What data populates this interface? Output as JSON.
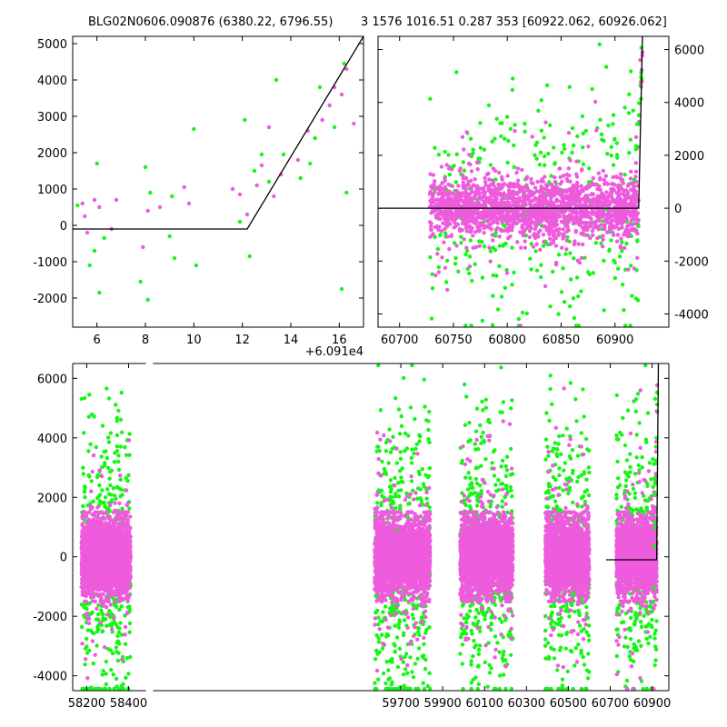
{
  "titles": {
    "left": "BLG02N0606.090876 (6380.22, 6796.55)",
    "right": "3 1576 1016.51 0.287 353 [60922.062, 60926.062]"
  },
  "colors": {
    "series_a": "#ee5bdd",
    "series_b": "#16f516",
    "fit_line": "#000000",
    "axes": "#000000",
    "background": "#ffffff"
  },
  "chart_data": [
    {
      "id": "zoom-left",
      "type": "scatter",
      "x_offset_label": "+6.091e4",
      "xlim": [
        5,
        17
      ],
      "ylim": [
        -2800,
        5200
      ],
      "xticks": [
        6,
        8,
        10,
        12,
        14,
        16
      ],
      "yticks": [
        -2000,
        -1000,
        0,
        1000,
        2000,
        3000,
        4000,
        5000
      ],
      "y_tick_side": "left",
      "series": [
        {
          "color": "#ee5bdd",
          "points": [
            [
              5.4,
              600
            ],
            [
              5.5,
              250
            ],
            [
              5.6,
              -200
            ],
            [
              5.9,
              700
            ],
            [
              6.1,
              500
            ],
            [
              6.6,
              -100
            ],
            [
              6.8,
              700
            ],
            [
              7.9,
              -600
            ],
            [
              8.1,
              400
            ],
            [
              8.6,
              500
            ],
            [
              9.6,
              1050
            ],
            [
              9.8,
              600
            ],
            [
              11.6,
              1000
            ],
            [
              11.9,
              850
            ],
            [
              12.2,
              300
            ],
            [
              12.6,
              1100
            ],
            [
              12.8,
              1650
            ],
            [
              13.1,
              2700
            ],
            [
              13.3,
              800
            ],
            [
              13.6,
              1400
            ],
            [
              14.3,
              1800
            ],
            [
              14.7,
              2600
            ],
            [
              15.3,
              2900
            ],
            [
              15.6,
              3300
            ],
            [
              15.8,
              3800
            ],
            [
              16.1,
              3600
            ],
            [
              16.3,
              4300
            ],
            [
              16.6,
              2800
            ]
          ]
        },
        {
          "color": "#16f516",
          "points": [
            [
              5.2,
              550
            ],
            [
              5.7,
              -1100
            ],
            [
              5.9,
              -700
            ],
            [
              6.0,
              1700
            ],
            [
              6.1,
              -1850
            ],
            [
              6.3,
              -350
            ],
            [
              7.8,
              -1550
            ],
            [
              8.0,
              1600
            ],
            [
              8.1,
              -2050
            ],
            [
              8.2,
              900
            ],
            [
              9.0,
              -300
            ],
            [
              9.1,
              800
            ],
            [
              9.2,
              -900
            ],
            [
              10.0,
              2650
            ],
            [
              10.1,
              -1100
            ],
            [
              11.9,
              100
            ],
            [
              12.1,
              2900
            ],
            [
              12.3,
              -850
            ],
            [
              12.5,
              1500
            ],
            [
              12.8,
              1950
            ],
            [
              13.1,
              1200
            ],
            [
              13.4,
              4000
            ],
            [
              13.7,
              1950
            ],
            [
              14.4,
              1300
            ],
            [
              14.8,
              1700
            ],
            [
              15.0,
              2400
            ],
            [
              15.2,
              3800
            ],
            [
              15.8,
              2700
            ],
            [
              16.1,
              -1750
            ],
            [
              16.2,
              4450
            ],
            [
              16.3,
              900
            ]
          ]
        }
      ],
      "fit_line": [
        [
          5,
          -100
        ],
        [
          12.2,
          -100
        ],
        [
          17,
          5200
        ]
      ]
    },
    {
      "id": "zoom-right",
      "type": "scatter",
      "xlim": [
        60680,
        60950
      ],
      "ylim": [
        -4500,
        6500
      ],
      "xticks": [
        60700,
        60750,
        60800,
        60850,
        60900
      ],
      "yticks": [
        -4000,
        -2000,
        0,
        2000,
        4000,
        6000
      ],
      "y_tick_side": "right",
      "segments": [
        [
          60728,
          60922
        ]
      ],
      "band_sd": 550,
      "outlier_sd": 1900,
      "up_tail": {
        "x_start": 60917,
        "x_end": 60926,
        "y_end": 6200
      },
      "fit_line": [
        [
          60680,
          0
        ],
        [
          60922,
          0
        ],
        [
          60925.5,
          6500
        ]
      ]
    },
    {
      "id": "full-lightcurve",
      "type": "scatter",
      "xlim": [
        58133,
        60980
      ],
      "ylim": [
        -4500,
        6500
      ],
      "xticks": [
        58200,
        58400,
        59700,
        59900,
        60100,
        60300,
        60500,
        60700,
        60900
      ],
      "yticks": [
        -4000,
        -2000,
        0,
        2000,
        4000,
        6000
      ],
      "y_tick_side": "left",
      "axis_break_x": 58500,
      "segments": [
        [
          58175,
          58410
        ],
        [
          59575,
          59840
        ],
        [
          59983,
          60235
        ],
        [
          60390,
          60600
        ],
        [
          60730,
          60922
        ]
      ],
      "band_sd": 600,
      "outlier_sd": 2000,
      "up_tail": {
        "x_start": 60910,
        "x_end": 60926,
        "y_end": 6200
      },
      "fit_line": [
        [
          60680,
          -100
        ],
        [
          60922,
          -100
        ],
        [
          60930,
          6500
        ]
      ]
    }
  ]
}
